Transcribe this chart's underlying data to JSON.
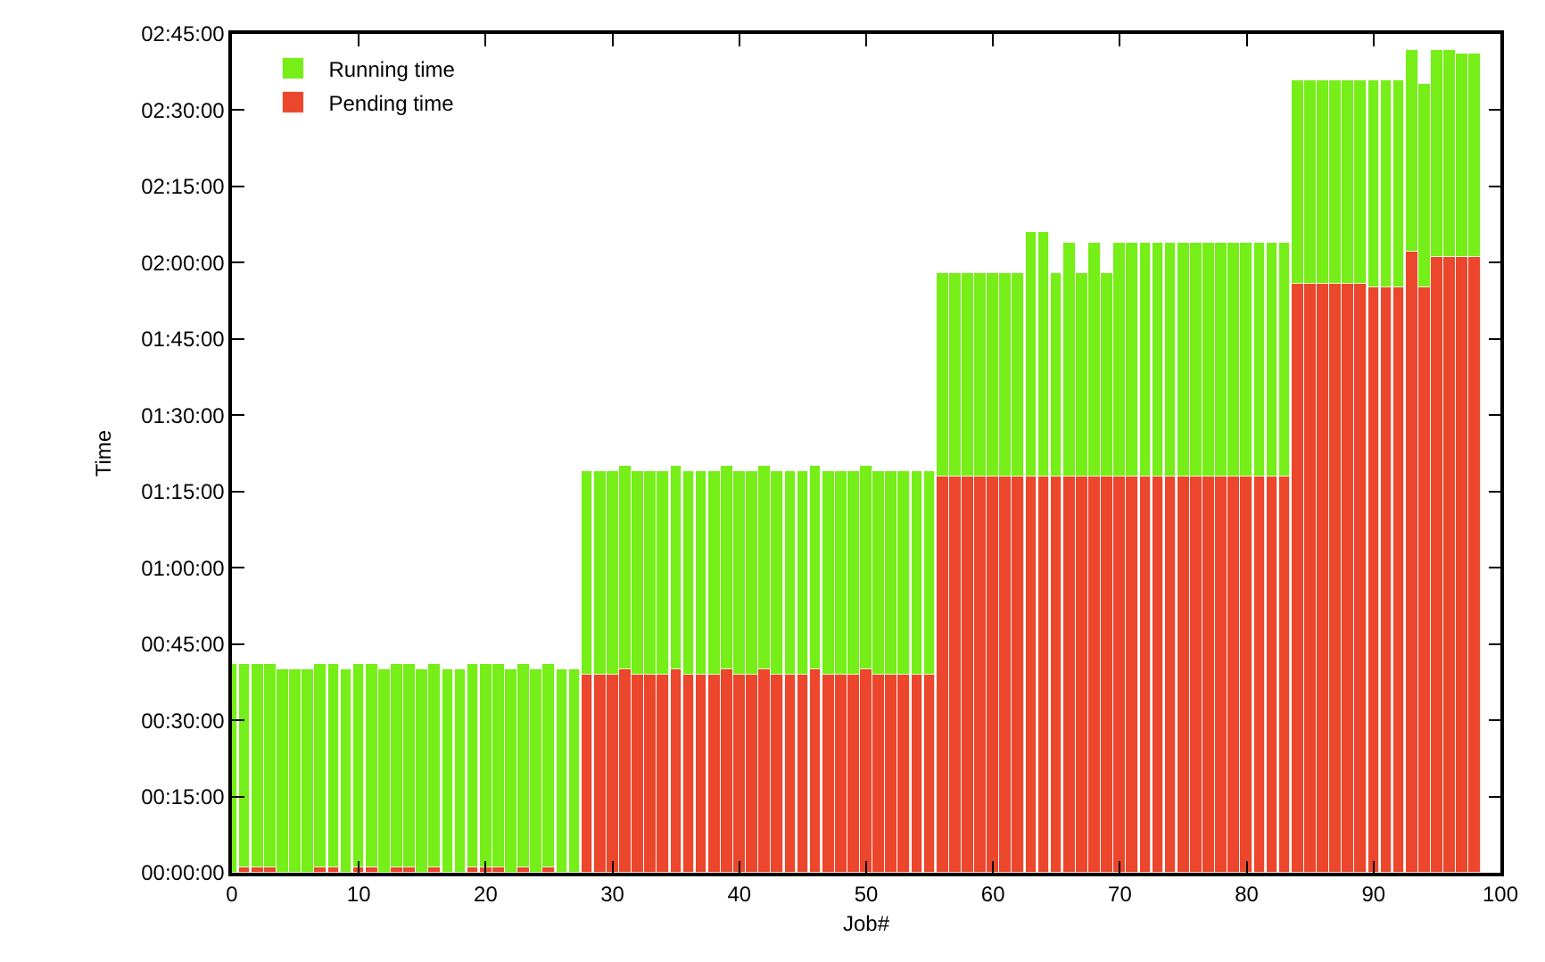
{
  "chart_data": {
    "type": "bar",
    "stacked": true,
    "xlabel": "Job#",
    "ylabel": "Time",
    "legend": "top left",
    "grid": false,
    "x": [
      0,
      1,
      2,
      3,
      4,
      5,
      6,
      7,
      8,
      9,
      10,
      11,
      12,
      13,
      14,
      15,
      16,
      17,
      18,
      19,
      20,
      21,
      22,
      23,
      24,
      25,
      26,
      27,
      28,
      29,
      30,
      31,
      32,
      33,
      34,
      35,
      36,
      37,
      38,
      39,
      40,
      41,
      42,
      43,
      44,
      45,
      46,
      47,
      48,
      49,
      50,
      51,
      52,
      53,
      54,
      55,
      56,
      57,
      58,
      59,
      60,
      61,
      62,
      63,
      64,
      65,
      66,
      67,
      68,
      69,
      70,
      71,
      72,
      73,
      74,
      75,
      76,
      77,
      78,
      79,
      80,
      81,
      82,
      83,
      84,
      85,
      86,
      87,
      88,
      89,
      90,
      91,
      92,
      93,
      94,
      95,
      96,
      97,
      98
    ],
    "xlim": [
      0,
      100
    ],
    "xticks": [
      0,
      10,
      20,
      30,
      40,
      50,
      60,
      70,
      80,
      90,
      100
    ],
    "ylim": [
      0,
      165
    ],
    "yticks": [
      {
        "value": 0,
        "label": "00:00:00"
      },
      {
        "value": 15,
        "label": "00:15:00"
      },
      {
        "value": 30,
        "label": "00:30:00"
      },
      {
        "value": 45,
        "label": "00:45:00"
      },
      {
        "value": 60,
        "label": "01:00:00"
      },
      {
        "value": 75,
        "label": "01:15:00"
      },
      {
        "value": 90,
        "label": "01:30:00"
      },
      {
        "value": 105,
        "label": "01:45:00"
      },
      {
        "value": 120,
        "label": "02:00:00"
      },
      {
        "value": 135,
        "label": "02:15:00"
      },
      {
        "value": 150,
        "label": "02:30:00"
      },
      {
        "value": 165,
        "label": "02:45:00"
      }
    ],
    "series": [
      {
        "name": "Pending time",
        "color": "#ec462c",
        "values": [
          0,
          1,
          1,
          1,
          0,
          0,
          0,
          1,
          1,
          0,
          1,
          1,
          0,
          1,
          1,
          0,
          1,
          0,
          0,
          1,
          1,
          1,
          0,
          1,
          0,
          1,
          0,
          0,
          39,
          39,
          39,
          40,
          39,
          39,
          39,
          40,
          39,
          39,
          39,
          40,
          39,
          39,
          40,
          39,
          39,
          39,
          40,
          39,
          39,
          39,
          40,
          39,
          39,
          39,
          39,
          39,
          78,
          78,
          78,
          78,
          78,
          78,
          78,
          78,
          78,
          78,
          78,
          78,
          78,
          78,
          78,
          78,
          78,
          78,
          78,
          78,
          78,
          78,
          78,
          78,
          78,
          78,
          78,
          78,
          116,
          116,
          116,
          116,
          116,
          116,
          115,
          115,
          115,
          122,
          115,
          121,
          121,
          121,
          121
        ]
      },
      {
        "name": "Running time",
        "color": "#76ee17",
        "values": [
          41,
          40,
          40,
          40,
          40,
          40,
          40,
          40,
          40,
          40,
          40,
          40,
          40,
          40,
          40,
          40,
          40,
          40,
          40,
          40,
          40,
          40,
          40,
          40,
          40,
          40,
          40,
          40,
          40,
          40,
          40,
          40,
          40,
          40,
          40,
          40,
          40,
          40,
          40,
          40,
          40,
          40,
          40,
          40,
          40,
          40,
          40,
          40,
          40,
          40,
          40,
          40,
          40,
          40,
          40,
          40,
          40,
          40,
          40,
          40,
          40,
          40,
          40,
          48,
          48,
          40,
          46,
          40,
          46,
          40,
          46,
          46,
          46,
          46,
          46,
          46,
          46,
          46,
          46,
          46,
          46,
          46,
          46,
          46,
          40,
          40,
          40,
          40,
          40,
          40,
          41,
          41,
          41,
          40,
          40,
          41,
          41,
          40,
          40
        ]
      }
    ]
  }
}
